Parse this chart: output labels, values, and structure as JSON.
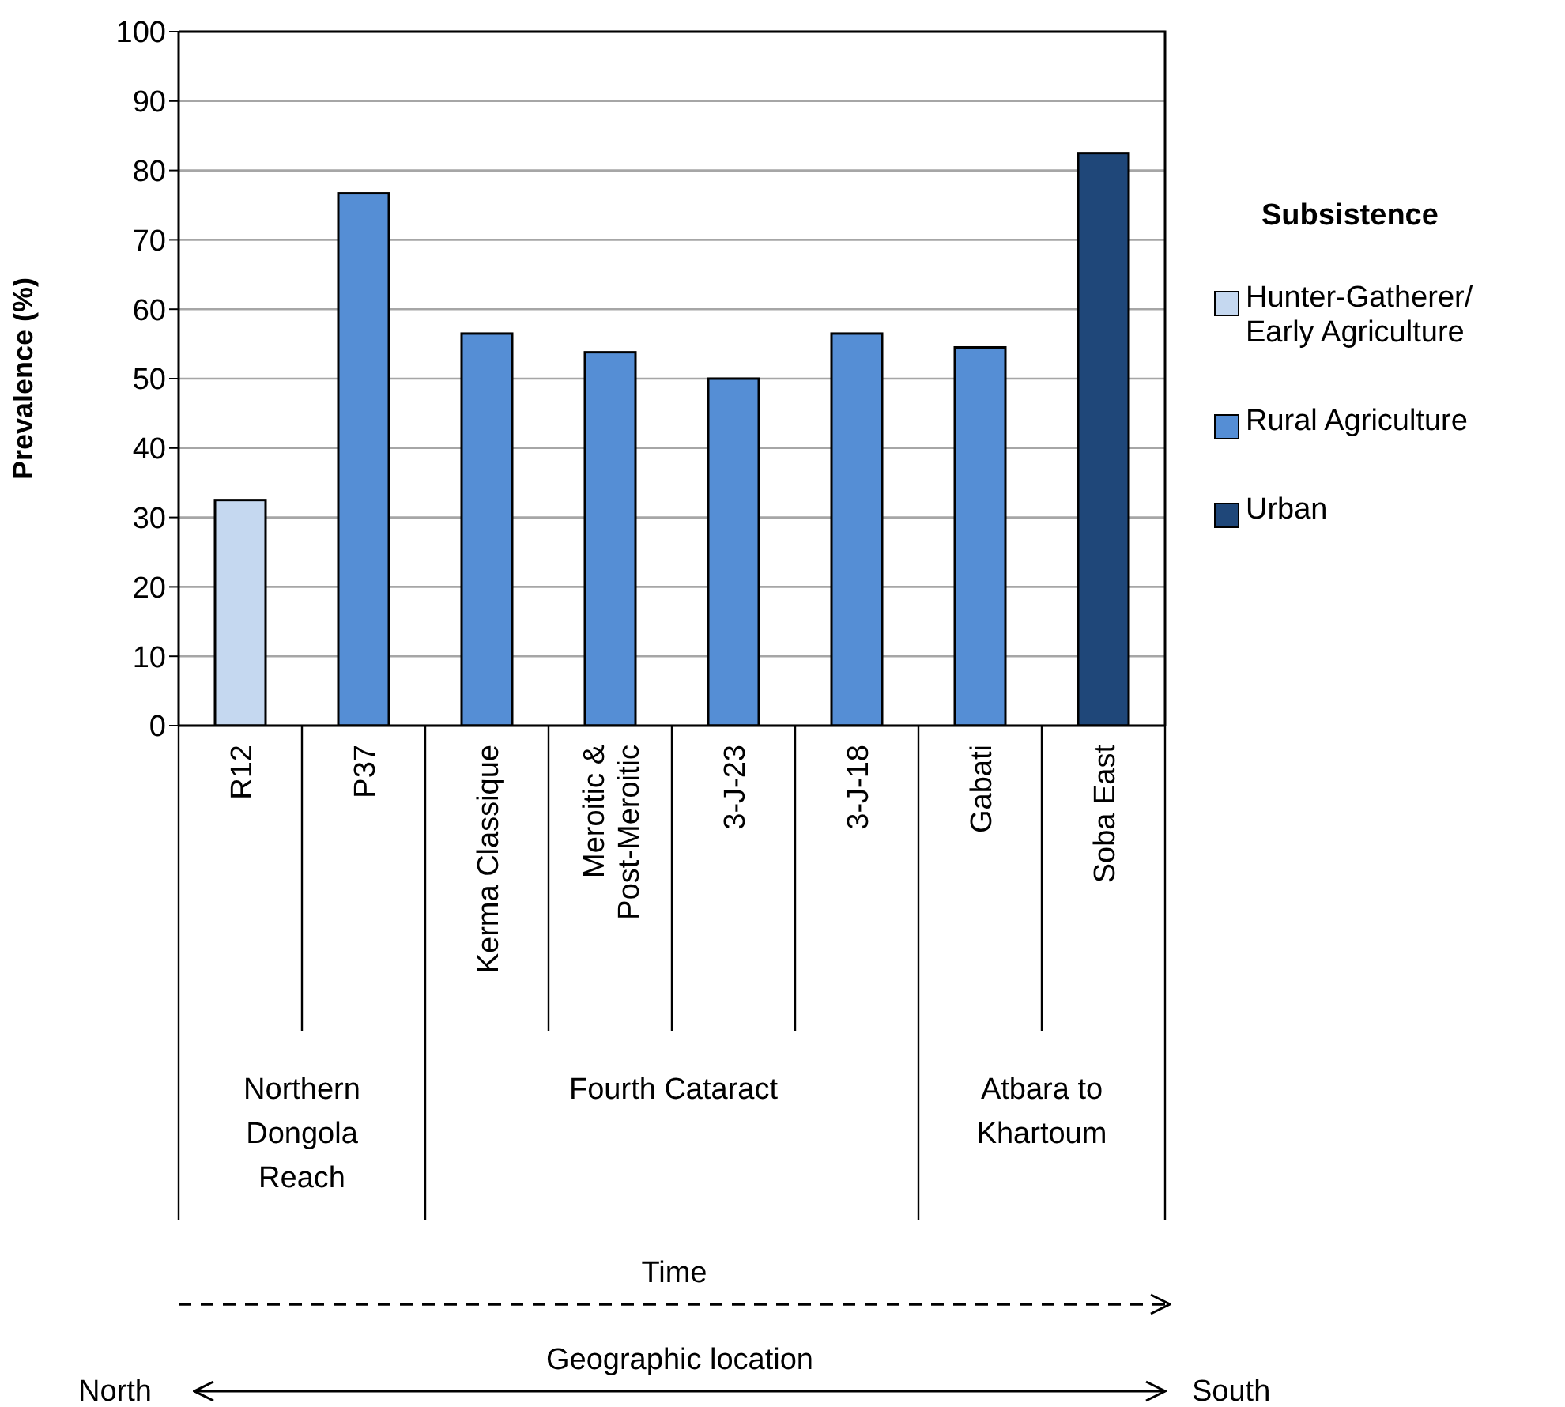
{
  "chart_data": {
    "type": "bar",
    "stacked": true,
    "ylabel": "Prevalence (%)",
    "legend_title": "Subsistence",
    "legend": "right",
    "grid": "y",
    "categories": [
      "R12",
      "P37",
      "Kerma Classique",
      "Meroitic & Post-Meroitic",
      "3-J-23",
      "3-J-18",
      "Gabati",
      "Soba East"
    ],
    "series": [
      {
        "name": "Hunter-Gatherer/ Early Agriculture",
        "color": "#c5d8f0",
        "values": [
          32.5,
          null,
          null,
          null,
          null,
          null,
          null,
          null
        ]
      },
      {
        "name": "Rural Agriculture",
        "color": "#558ed5",
        "values": [
          null,
          76.7,
          56.5,
          53.8,
          50,
          56.5,
          54.5,
          null
        ]
      },
      {
        "name": "Urban",
        "color": "#1f4779",
        "values": [
          null,
          null,
          null,
          null,
          null,
          null,
          null,
          82.5
        ]
      }
    ],
    "ylim": [
      0,
      100
    ],
    "yticks": [
      0,
      10,
      20,
      30,
      40,
      50,
      60,
      70,
      80,
      90,
      100
    ],
    "annotations": [
      "Northern Dongola Reach",
      "Fourth Cataract",
      "Atbara to Khartoum",
      "Time",
      "Geographic location",
      "North",
      "South"
    ]
  }
}
